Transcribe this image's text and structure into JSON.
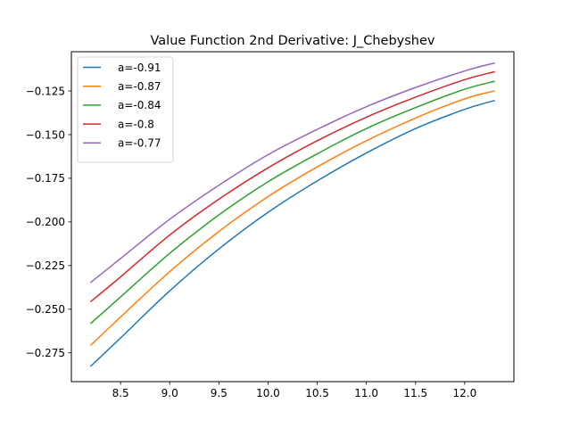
{
  "chart_data": {
    "type": "line",
    "title": "Value Function 2nd Derivative: J_Chebyshev",
    "xlabel": "",
    "ylabel": "",
    "xlim": [
      8.0,
      12.5
    ],
    "ylim": [
      -0.2915,
      -0.1025
    ],
    "xticks": [
      8.5,
      9.0,
      9.5,
      10.0,
      10.5,
      11.0,
      11.5,
      12.0
    ],
    "xtick_labels": [
      "8.5",
      "9.0",
      "9.5",
      "10.0",
      "10.5",
      "11.0",
      "11.5",
      "12.0"
    ],
    "yticks": [
      -0.275,
      -0.25,
      -0.225,
      -0.2,
      -0.175,
      -0.15,
      -0.125
    ],
    "ytick_labels": [
      "−0.275",
      "−0.250",
      "−0.225",
      "−0.200",
      "−0.175",
      "−0.150",
      "−0.125"
    ],
    "grid": false,
    "legend_position": "top-left",
    "x": [
      8.2,
      8.5,
      9.0,
      9.5,
      10.0,
      10.5,
      11.0,
      11.5,
      12.0,
      12.3
    ],
    "series": [
      {
        "name": "a=-0.91",
        "color": "#1f77b4",
        "values": [
          -0.2825,
          -0.2665,
          -0.2395,
          -0.2155,
          -0.1945,
          -0.1765,
          -0.1605,
          -0.1465,
          -0.1355,
          -0.1305
        ]
      },
      {
        "name": "a=-0.87",
        "color": "#ff7f0e",
        "values": [
          -0.2705,
          -0.2545,
          -0.2285,
          -0.2055,
          -0.1855,
          -0.1685,
          -0.1535,
          -0.1405,
          -0.1295,
          -0.125
        ]
      },
      {
        "name": "a=-0.84",
        "color": "#2ca02c",
        "values": [
          -0.258,
          -0.243,
          -0.218,
          -0.196,
          -0.177,
          -0.161,
          -0.1465,
          -0.1345,
          -0.124,
          -0.1195
        ]
      },
      {
        "name": "a=-0.8",
        "color": "#d62728",
        "values": [
          -0.2455,
          -0.2315,
          -0.2075,
          -0.187,
          -0.169,
          -0.1535,
          -0.14,
          -0.1285,
          -0.1185,
          -0.114
        ]
      },
      {
        "name": "a=-0.77",
        "color": "#9467bd",
        "values": [
          -0.2345,
          -0.221,
          -0.1985,
          -0.179,
          -0.1615,
          -0.147,
          -0.134,
          -0.123,
          -0.1135,
          -0.109
        ]
      }
    ]
  }
}
